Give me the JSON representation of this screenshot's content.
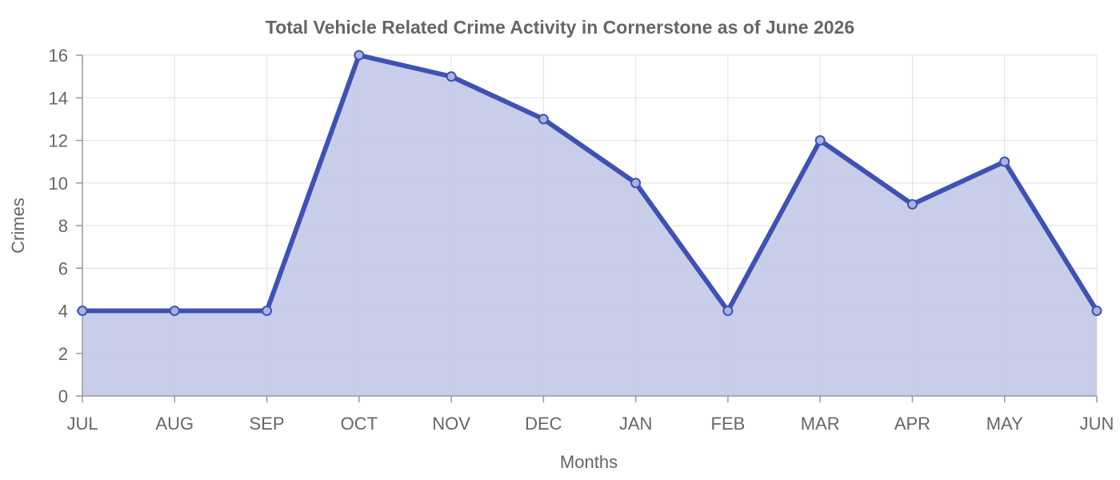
{
  "chart_data": {
    "type": "area",
    "title": "Total Vehicle Related Crime Activity in Cornerstone as of June 2026",
    "xlabel": "Months",
    "ylabel": "Crimes",
    "categories": [
      "JUL",
      "AUG",
      "SEP",
      "OCT",
      "NOV",
      "DEC",
      "JAN",
      "FEB",
      "MAR",
      "APR",
      "MAY",
      "JUN"
    ],
    "series": [
      {
        "values": [
          4,
          4,
          4,
          16,
          15,
          13,
          10,
          4,
          12,
          9,
          11,
          4
        ]
      }
    ],
    "ylim": [
      0,
      16
    ],
    "yticks": [
      0,
      2,
      4,
      6,
      8,
      10,
      12,
      14,
      16
    ],
    "grid": true,
    "legend": "none",
    "colors": {
      "line": "#3f51b5",
      "fill": "#c5cae9",
      "grid": "#e0e0e0",
      "text": "#666666"
    }
  }
}
